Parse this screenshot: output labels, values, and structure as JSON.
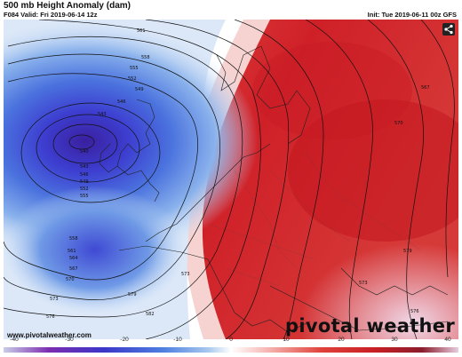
{
  "header": {
    "title": "500 mb Height Anomaly (dam)",
    "valid": "F084 Valid: Fri 2019-06-14 12z",
    "init": "Init: Tue 2019-06-11 00z GFS"
  },
  "contour_labels": [
    "561",
    "558",
    "555",
    "552",
    "549",
    "546",
    "543",
    "540",
    "543",
    "546",
    "549",
    "552",
    "555",
    "558",
    "561",
    "564",
    "567",
    "570",
    "573",
    "576",
    "579",
    "582",
    "573",
    "579",
    "576",
    "573",
    "570",
    "567"
  ],
  "colorbar": {
    "ticks": [
      "-40",
      "-30",
      "-20",
      "-10",
      "0",
      "10",
      "20",
      "30",
      "40"
    ],
    "colors": [
      "#c9cde8",
      "#7b2db0",
      "#3b36c8",
      "#4d7fe0",
      "#a9c8ee",
      "#ffffff",
      "#f6b6b3",
      "#e0413a",
      "#c71e25",
      "#8a1d2c",
      "#e8cde0"
    ]
  },
  "watermark_url": "www.pivotalweather.com",
  "brand": "pivotal weather",
  "icons": {
    "share": "share-icon",
    "brand_dot": "pin-icon"
  }
}
